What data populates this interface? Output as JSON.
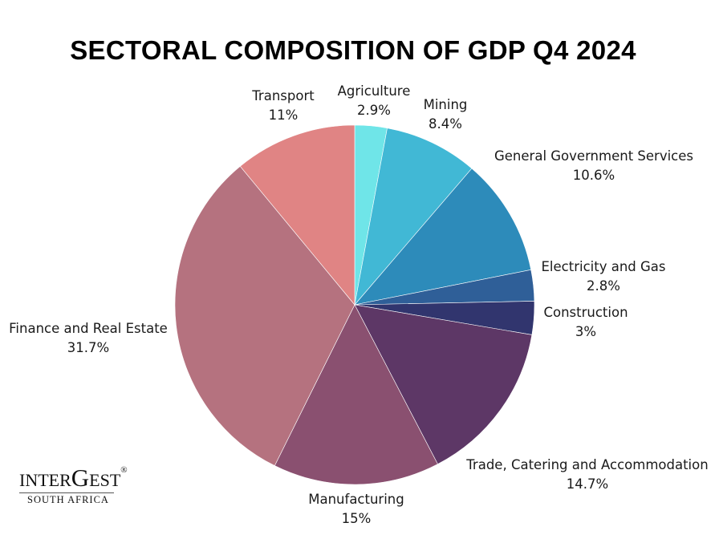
{
  "title": "SECTORAL COMPOSITION OF GDP Q4 2024",
  "logo": {
    "main": "INTER",
    "g": "G",
    "rest": "EST",
    "reg": "®",
    "sub": "SOUTH AFRICA"
  },
  "chart_data": {
    "type": "pie",
    "title": "SECTORAL COMPOSITION OF GDP Q4 2024",
    "slices": [
      {
        "label": "Agriculture",
        "value_label": "2.9%",
        "value": 2.9,
        "color": "#6fe5e8"
      },
      {
        "label": "Mining",
        "value_label": "8.4%",
        "value": 8.4,
        "color": "#41b8d5"
      },
      {
        "label": "General Government Services",
        "value_label": "10.6%",
        "value": 10.6,
        "color": "#2d8bba"
      },
      {
        "label": "Electricity and Gas",
        "value_label": "2.8%",
        "value": 2.8,
        "color": "#2f5f98"
      },
      {
        "label": "Construction",
        "value_label": "3%",
        "value": 3,
        "color": "#31356e"
      },
      {
        "label": "Trade, Catering and Accommodation",
        "value_label": "14.7%",
        "value": 14.7,
        "color": "#5d3766"
      },
      {
        "label": "Manufacturing",
        "value_label": "15%",
        "value": 15,
        "color": "#8a5070"
      },
      {
        "label": "Finance and Real Estate",
        "value_label": "31.7%",
        "value": 31.7,
        "color": "#b5727f"
      },
      {
        "label": "Transport",
        "value_label": "11%",
        "value": 11,
        "color": "#e08484"
      }
    ]
  }
}
